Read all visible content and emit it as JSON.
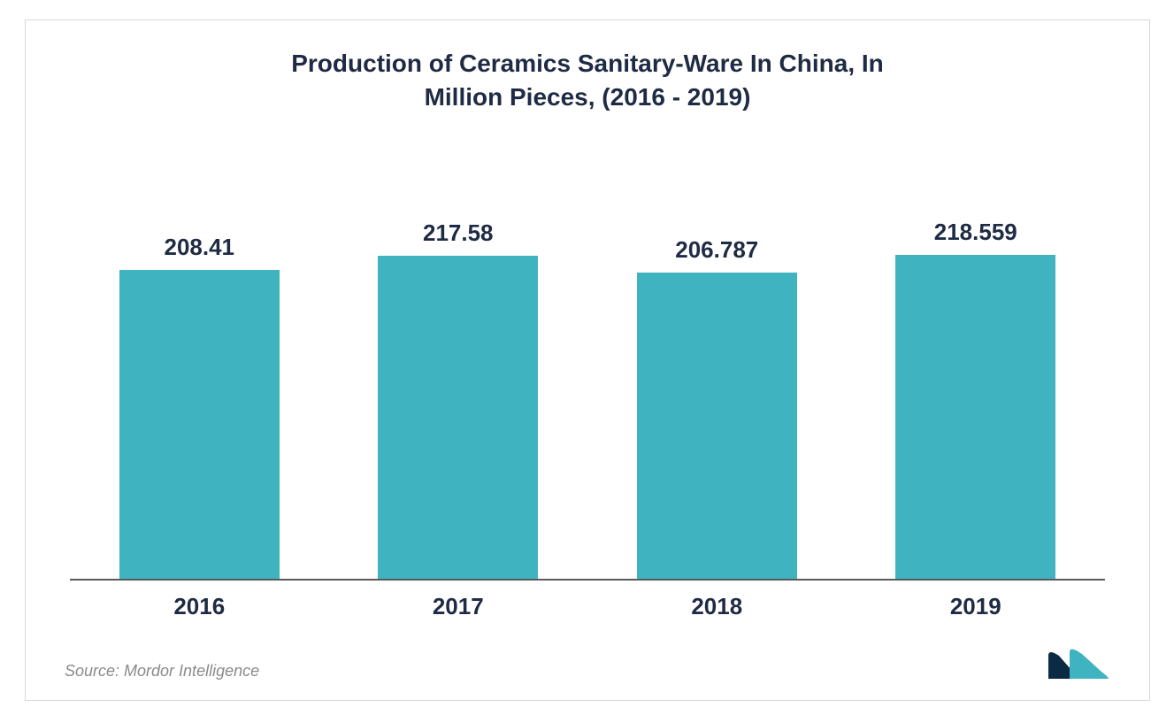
{
  "chart": {
    "type": "bar",
    "title_line1": "Production of Ceramics Sanitary-Ware In China, In",
    "title_line2": "Million Pieces, (2016 - 2019)",
    "title_fontsize": 28,
    "title_color": "#1f2b44",
    "categories": [
      "2016",
      "2017",
      "2018",
      "2019"
    ],
    "values": [
      208.41,
      217.58,
      206.787,
      218.559
    ],
    "value_labels": [
      "208.41",
      "217.58",
      "206.787",
      "218.559"
    ],
    "bar_color": "#3fb4c0",
    "value_label_color": "#1f2b44",
    "value_label_fontsize": 26,
    "xlabel_color": "#1f2b44",
    "xlabel_fontsize": 26,
    "axis_color": "#5a5a5a",
    "background_color": "#ffffff",
    "border_color": "#d8d8d8",
    "ylim": [
      0,
      300
    ],
    "bar_width": 0.62
  },
  "footer": {
    "source_text": "Source: Mordor Intelligence",
    "source_color": "#8a8a8a",
    "source_fontsize": 18,
    "logo_colors": {
      "left": "#0b2b45",
      "right": "#3fb4c0"
    }
  }
}
